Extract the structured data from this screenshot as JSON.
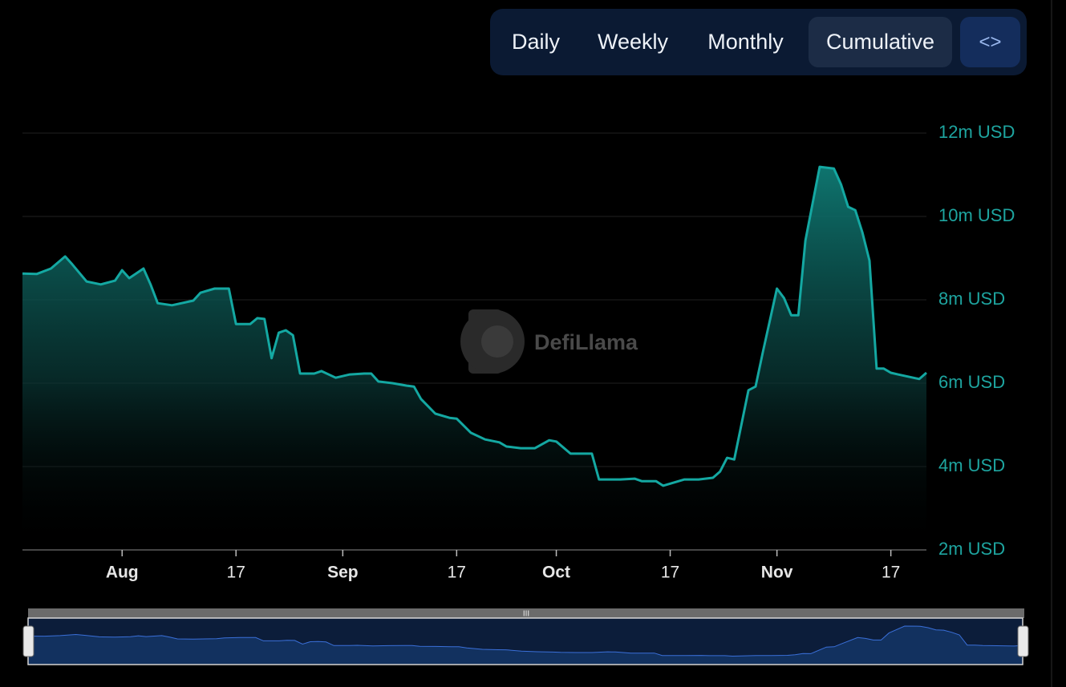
{
  "controls": {
    "tabs": [
      "Daily",
      "Weekly",
      "Monthly",
      "Cumulative"
    ],
    "active": 3,
    "embed": "<>"
  },
  "watermark": "DefiLlama",
  "chart_data": {
    "type": "area",
    "x": [
      "07-18",
      "07-20",
      "07-22",
      "07-24",
      "07-25",
      "07-27",
      "07-29",
      "07-31",
      "08-01",
      "08-02",
      "08-04",
      "08-05",
      "08-06",
      "08-08",
      "08-11",
      "08-12",
      "08-14",
      "08-16",
      "08-17",
      "08-19",
      "08-20",
      "08-21",
      "08-22",
      "08-23",
      "08-24",
      "08-25",
      "08-26",
      "08-28",
      "08-29",
      "08-31",
      "09-02",
      "09-04",
      "09-05",
      "09-06",
      "09-08",
      "09-10",
      "09-11",
      "09-12",
      "09-14",
      "09-16",
      "09-17",
      "09-19",
      "09-21",
      "09-23",
      "09-24",
      "09-26",
      "09-28",
      "09-30",
      "10-01",
      "10-03",
      "10-06",
      "10-07",
      "10-10",
      "10-12",
      "10-13",
      "10-15",
      "10-16",
      "10-19",
      "10-21",
      "10-23",
      "10-24",
      "10-25",
      "10-26",
      "10-28",
      "10-29",
      "10-30",
      "11-01",
      "11-02",
      "11-03",
      "11-04",
      "11-05",
      "11-07",
      "11-09",
      "11-10",
      "11-11",
      "11-12",
      "11-13",
      "11-14",
      "11-15",
      "11-16",
      "11-17",
      "11-18",
      "11-21",
      "11-22"
    ],
    "series": [
      {
        "color": "#14a8a2",
        "values": [
          8.63,
          8.62,
          8.75,
          9.04,
          8.85,
          8.44,
          8.37,
          8.46,
          8.71,
          8.52,
          8.75,
          8.37,
          7.92,
          7.87,
          7.98,
          8.17,
          8.27,
          8.27,
          7.42,
          7.42,
          7.56,
          7.54,
          6.6,
          7.21,
          7.27,
          7.15,
          6.23,
          6.23,
          6.29,
          6.13,
          6.21,
          6.23,
          6.23,
          6.04,
          6.0,
          5.94,
          5.92,
          5.62,
          5.27,
          5.17,
          5.15,
          4.81,
          4.65,
          4.58,
          4.48,
          4.44,
          4.44,
          4.63,
          4.6,
          4.31,
          4.31,
          3.69,
          3.69,
          3.71,
          3.65,
          3.65,
          3.54,
          3.69,
          3.69,
          3.73,
          3.88,
          4.21,
          4.17,
          5.83,
          5.92,
          6.73,
          8.27,
          8.04,
          7.63,
          7.63,
          9.42,
          11.19,
          11.15,
          10.77,
          10.23,
          10.15,
          9.62,
          8.94,
          6.35,
          6.35,
          6.25,
          6.21,
          6.1,
          6.25
        ]
      }
    ],
    "xlim": [
      "07-18",
      "11-22"
    ],
    "xticks": [
      {
        "value": "08-01",
        "label": "Aug"
      },
      {
        "value": "08-17",
        "label": "17"
      },
      {
        "value": "09-01",
        "label": "Sep"
      },
      {
        "value": "09-17",
        "label": "17"
      },
      {
        "value": "10-01",
        "label": "Oct"
      },
      {
        "value": "10-17",
        "label": "17"
      },
      {
        "value": "11-01",
        "label": "Nov"
      },
      {
        "value": "11-17",
        "label": "17"
      }
    ],
    "ylim": [
      2,
      12
    ],
    "yticks": [
      {
        "value": 2,
        "label": "2m USD"
      },
      {
        "value": 4,
        "label": "4m USD"
      },
      {
        "value": 6,
        "label": "6m USD"
      },
      {
        "value": 8,
        "label": "8m USD"
      },
      {
        "value": 10,
        "label": "10m USD"
      },
      {
        "value": 12,
        "label": "12m USD"
      }
    ],
    "grid": true
  }
}
